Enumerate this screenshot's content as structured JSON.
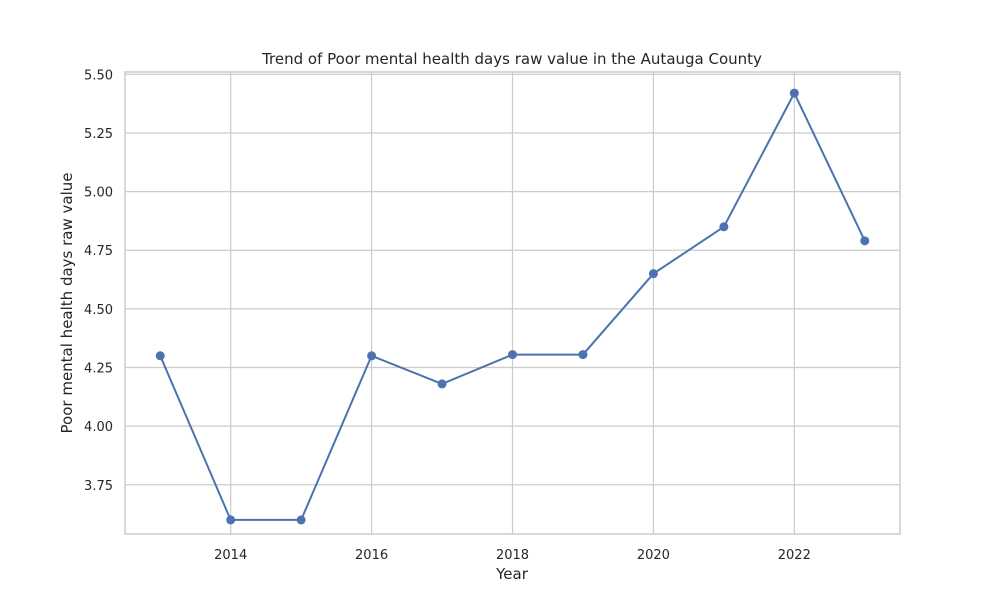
{
  "chart_data": {
    "type": "line",
    "title": "Trend of Poor mental health days raw value in the Autauga County",
    "xlabel": "Year",
    "ylabel": "Poor mental health days raw value",
    "x": [
      2013,
      2014,
      2015,
      2016,
      2017,
      2018,
      2019,
      2020,
      2021,
      2022,
      2023
    ],
    "series": [
      {
        "values": [
          4.3,
          3.6,
          3.6,
          4.3,
          4.18,
          4.305,
          4.305,
          4.65,
          4.85,
          5.42,
          4.79
        ]
      }
    ],
    "xlim": [
      2012.5,
      2023.5
    ],
    "ylim": [
      3.54,
      5.51
    ],
    "x_ticks": [
      "2014",
      "2016",
      "2018",
      "2020",
      "2022"
    ],
    "y_ticks": [
      "3.75",
      "4.00",
      "4.25",
      "4.50",
      "4.75",
      "5.00",
      "5.25",
      "5.50"
    ],
    "grid": true,
    "line_color": "#4c72b0"
  }
}
